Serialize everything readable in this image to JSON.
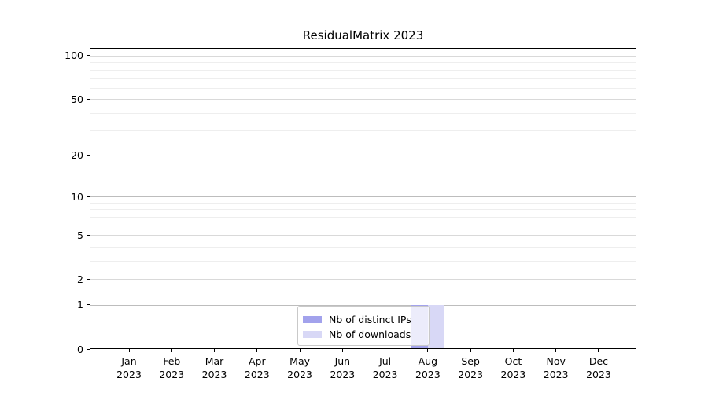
{
  "chart_data": {
    "type": "bar",
    "title": "ResidualMatrix 2023",
    "categories": [
      "Jan 2023",
      "Feb 2023",
      "Mar 2023",
      "Apr 2023",
      "May 2023",
      "Jun 2023",
      "Jul 2023",
      "Aug 2023",
      "Sep 2023",
      "Oct 2023",
      "Nov 2023",
      "Dec 2023"
    ],
    "series": [
      {
        "name": "Nb of distinct IPs",
        "color": "#a2a2ec",
        "values": [
          0,
          0,
          0,
          0,
          0,
          0,
          0,
          1,
          0,
          0,
          0,
          0
        ]
      },
      {
        "name": "Nb of downloads",
        "color": "#d8d8f6",
        "values": [
          0,
          0,
          0,
          0,
          0,
          0,
          0,
          1,
          0,
          0,
          0,
          0
        ]
      }
    ],
    "xlabel": "",
    "ylabel": "",
    "yscale": "log1p",
    "ylim": [
      0,
      113
    ],
    "y_major_ticks": [
      0,
      1,
      2,
      5,
      10,
      20,
      50,
      100
    ],
    "y_minor_ticks": [
      3,
      4,
      6,
      7,
      8,
      9,
      30,
      40,
      60,
      70,
      80,
      90
    ],
    "grid": "horizontal",
    "legend_position": "bottom-center"
  },
  "colors": {
    "background": "#ffffff",
    "axis": "#000000",
    "grid_major": "#d9d9d9",
    "grid_major_emphasis": "#bdbdbd",
    "grid_minor": "#eeeeee",
    "legend_border": "#c9c9c9"
  }
}
